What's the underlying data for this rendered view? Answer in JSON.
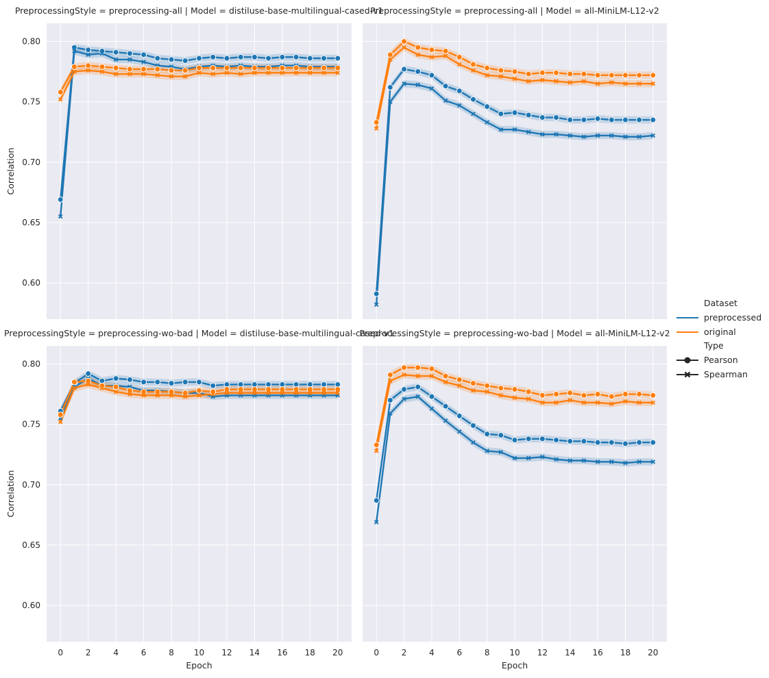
{
  "chart_data": {
    "type": "line",
    "xlabel": "Epoch",
    "ylabel": "Correlation",
    "xlim": [
      -1,
      21
    ],
    "ylim": [
      0.57,
      0.815
    ],
    "xticks": [
      0,
      2,
      4,
      6,
      8,
      10,
      12,
      14,
      16,
      18,
      20
    ],
    "yticks": [
      0.6,
      0.65,
      0.7,
      0.75,
      0.8
    ],
    "ytick_labels": [
      "0.60",
      "0.65",
      "0.70",
      "0.75",
      "0.80"
    ],
    "grid": true,
    "band_halfwidth": 0.003,
    "colors": {
      "preprocessed": "#1f77b4",
      "original": "#ff7f0e",
      "background": "#eaeaf2",
      "grid": "#ffffff",
      "text": "#262626"
    },
    "legend": {
      "placement": "right-center",
      "title": "Dataset",
      "hue_entries": [
        "preprocessed",
        "original"
      ],
      "style_title": "Type",
      "style_entries": [
        "Pearson",
        "Spearman"
      ]
    },
    "x": [
      0,
      1,
      2,
      3,
      4,
      5,
      6,
      7,
      8,
      9,
      10,
      11,
      12,
      13,
      14,
      15,
      16,
      17,
      18,
      19,
      20
    ],
    "facets": [
      {
        "title": "PreprocessingStyle = preprocessing-all | Model = distiluse-base-multilingual-cased-v1",
        "series": [
          {
            "dataset": "preprocessed",
            "type": "Pearson",
            "values": [
              0.669,
              0.795,
              0.793,
              0.792,
              0.791,
              0.79,
              0.789,
              0.786,
              0.785,
              0.784,
              0.786,
              0.787,
              0.786,
              0.787,
              0.787,
              0.786,
              0.787,
              0.787,
              0.786,
              0.786,
              0.786
            ]
          },
          {
            "dataset": "preprocessed",
            "type": "Spearman",
            "values": [
              0.655,
              0.792,
              0.789,
              0.79,
              0.785,
              0.785,
              0.783,
              0.78,
              0.779,
              0.777,
              0.779,
              0.78,
              0.779,
              0.78,
              0.779,
              0.779,
              0.78,
              0.78,
              0.779,
              0.779,
              0.779
            ]
          },
          {
            "dataset": "original",
            "type": "Pearson",
            "values": [
              0.758,
              0.779,
              0.78,
              0.779,
              0.778,
              0.777,
              0.777,
              0.777,
              0.776,
              0.776,
              0.778,
              0.778,
              0.778,
              0.778,
              0.778,
              0.778,
              0.778,
              0.778,
              0.778,
              0.778,
              0.778
            ]
          },
          {
            "dataset": "original",
            "type": "Spearman",
            "values": [
              0.752,
              0.775,
              0.776,
              0.775,
              0.773,
              0.773,
              0.773,
              0.772,
              0.771,
              0.771,
              0.774,
              0.773,
              0.774,
              0.773,
              0.774,
              0.774,
              0.774,
              0.774,
              0.774,
              0.774,
              0.774
            ]
          }
        ]
      },
      {
        "title": "PreprocessingStyle = preprocessing-all | Model = all-MiniLM-L12-v2",
        "series": [
          {
            "dataset": "preprocessed",
            "type": "Pearson",
            "values": [
              0.591,
              0.762,
              0.777,
              0.775,
              0.772,
              0.763,
              0.759,
              0.752,
              0.746,
              0.74,
              0.741,
              0.739,
              0.737,
              0.737,
              0.735,
              0.735,
              0.736,
              0.735,
              0.735,
              0.735,
              0.735
            ]
          },
          {
            "dataset": "preprocessed",
            "type": "Spearman",
            "values": [
              0.582,
              0.75,
              0.765,
              0.764,
              0.761,
              0.751,
              0.747,
              0.74,
              0.733,
              0.727,
              0.727,
              0.725,
              0.723,
              0.723,
              0.722,
              0.721,
              0.722,
              0.722,
              0.721,
              0.721,
              0.722
            ]
          },
          {
            "dataset": "original",
            "type": "Pearson",
            "values": [
              0.733,
              0.789,
              0.8,
              0.795,
              0.793,
              0.792,
              0.787,
              0.781,
              0.778,
              0.776,
              0.775,
              0.773,
              0.774,
              0.774,
              0.773,
              0.773,
              0.772,
              0.772,
              0.772,
              0.772,
              0.772
            ]
          },
          {
            "dataset": "original",
            "type": "Spearman",
            "values": [
              0.728,
              0.785,
              0.795,
              0.789,
              0.787,
              0.788,
              0.781,
              0.776,
              0.772,
              0.771,
              0.769,
              0.767,
              0.768,
              0.767,
              0.766,
              0.767,
              0.765,
              0.766,
              0.765,
              0.765,
              0.765
            ]
          }
        ]
      },
      {
        "title": "PreprocessingStyle = preprocessing-wo-bad | Model = distiluse-base-multilingual-cased-v1",
        "series": [
          {
            "dataset": "preprocessed",
            "type": "Pearson",
            "values": [
              0.761,
              0.784,
              0.792,
              0.786,
              0.788,
              0.787,
              0.785,
              0.785,
              0.784,
              0.785,
              0.785,
              0.782,
              0.783,
              0.783,
              0.783,
              0.783,
              0.783,
              0.783,
              0.783,
              0.783,
              0.783
            ]
          },
          {
            "dataset": "preprocessed",
            "type": "Spearman",
            "values": [
              0.755,
              0.781,
              0.788,
              0.782,
              0.782,
              0.781,
              0.778,
              0.778,
              0.777,
              0.776,
              0.776,
              0.773,
              0.774,
              0.774,
              0.774,
              0.774,
              0.774,
              0.774,
              0.774,
              0.774,
              0.774
            ]
          },
          {
            "dataset": "original",
            "type": "Pearson",
            "values": [
              0.758,
              0.785,
              0.786,
              0.782,
              0.781,
              0.778,
              0.777,
              0.777,
              0.777,
              0.776,
              0.778,
              0.777,
              0.779,
              0.779,
              0.779,
              0.779,
              0.779,
              0.779,
              0.779,
              0.779,
              0.779
            ]
          },
          {
            "dataset": "original",
            "type": "Spearman",
            "values": [
              0.752,
              0.78,
              0.783,
              0.78,
              0.777,
              0.775,
              0.774,
              0.774,
              0.774,
              0.773,
              0.774,
              0.775,
              0.776,
              0.776,
              0.776,
              0.776,
              0.776,
              0.776,
              0.776,
              0.776,
              0.776
            ]
          }
        ]
      },
      {
        "title": "PreprocessingStyle = preprocessing-wo-bad | Model = all-MiniLM-L12-v2",
        "series": [
          {
            "dataset": "preprocessed",
            "type": "Pearson",
            "values": [
              0.687,
              0.77,
              0.779,
              0.781,
              0.773,
              0.765,
              0.757,
              0.749,
              0.742,
              0.741,
              0.737,
              0.738,
              0.738,
              0.737,
              0.736,
              0.736,
              0.735,
              0.735,
              0.734,
              0.735,
              0.735
            ]
          },
          {
            "dataset": "preprocessed",
            "type": "Spearman",
            "values": [
              0.669,
              0.759,
              0.771,
              0.773,
              0.763,
              0.753,
              0.744,
              0.735,
              0.728,
              0.727,
              0.722,
              0.722,
              0.723,
              0.721,
              0.72,
              0.72,
              0.719,
              0.719,
              0.718,
              0.719,
              0.719
            ]
          },
          {
            "dataset": "original",
            "type": "Pearson",
            "values": [
              0.733,
              0.791,
              0.797,
              0.797,
              0.796,
              0.79,
              0.787,
              0.784,
              0.782,
              0.78,
              0.779,
              0.777,
              0.774,
              0.775,
              0.776,
              0.774,
              0.775,
              0.773,
              0.775,
              0.775,
              0.774
            ]
          },
          {
            "dataset": "original",
            "type": "Spearman",
            "values": [
              0.728,
              0.786,
              0.791,
              0.79,
              0.79,
              0.785,
              0.782,
              0.778,
              0.777,
              0.774,
              0.772,
              0.771,
              0.768,
              0.768,
              0.77,
              0.768,
              0.768,
              0.767,
              0.769,
              0.768,
              0.768
            ]
          }
        ]
      }
    ]
  }
}
